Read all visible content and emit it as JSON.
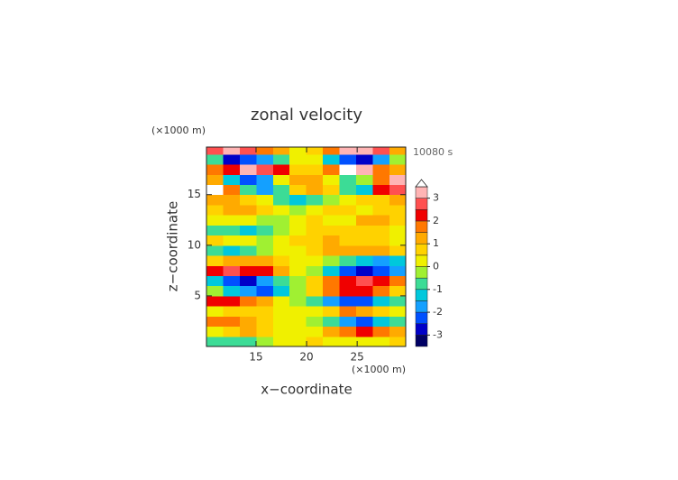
{
  "chart_data": {
    "type": "contourf",
    "title": "zonal velocity",
    "time_label": "10080 s",
    "x_label": "x−coordinate",
    "y_label": "z−coordinate",
    "x_unit": "(×1000 m)",
    "y_unit": "(×1000 m)",
    "xlim": [
      10.1,
      29.8
    ],
    "ylim": [
      0,
      19.7
    ],
    "xticks": [
      15,
      20,
      25
    ],
    "yticks": [
      5,
      10,
      15
    ],
    "x": [
      10.9,
      12.6,
      14.2,
      15.9,
      17.5,
      19.1,
      20.8,
      22.4,
      24.1,
      25.7,
      27.4,
      29.0
    ],
    "y": [
      0.5,
      1.5,
      2.5,
      3.5,
      4.5,
      5.5,
      6.5,
      7.5,
      8.5,
      9.5,
      10.5,
      11.5,
      12.5,
      13.5,
      14.5,
      15.5,
      16.5,
      17.5,
      18.5,
      19.5
    ],
    "z": [
      [
        -0.8,
        -1,
        -0.6,
        -0.2,
        0.2,
        0.3,
        0.5,
        0.4,
        0.3,
        0.2,
        0.4,
        0.5
      ],
      [
        0.3,
        0.5,
        1,
        0.8,
        0.4,
        0.2,
        0.3,
        1,
        1.8,
        2.2,
        1.5,
        1
      ],
      [
        1.5,
        1.8,
        1.2,
        0.8,
        0.3,
        0,
        -0.2,
        -1,
        -1.8,
        -2.2,
        -1.5,
        -0.8
      ],
      [
        0.2,
        0.6,
        0.9,
        0.5,
        0.2,
        0.1,
        0.2,
        0.8,
        1.5,
        1.2,
        0.7,
        0.4
      ],
      [
        2,
        2.4,
        1.8,
        1.2,
        0.3,
        -0.5,
        -1,
        -1.8,
        -2.5,
        -2.2,
        -1.5,
        -0.8
      ],
      [
        -0.5,
        -1.2,
        -2,
        -2.4,
        -1.5,
        -0.4,
        0.8,
        1.8,
        2.2,
        2.4,
        1.5,
        0.8
      ],
      [
        -1.5,
        -2.2,
        -2.6,
        -2,
        -1,
        -0.2,
        0.5,
        1.5,
        2.4,
        2.6,
        2.2,
        1.5
      ],
      [
        2.2,
        2.6,
        2.4,
        2,
        1.2,
        0.3,
        -0.5,
        -1.5,
        -2.4,
        -2.6,
        -2.2,
        -2
      ],
      [
        0.8,
        1.2,
        1.4,
        1,
        0.5,
        0.2,
        0.1,
        -0.3,
        -0.8,
        -1.2,
        -1.8,
        -1.5
      ],
      [
        -0.6,
        -1.2,
        -1,
        -0.5,
        0.2,
        0.4,
        0.5,
        1,
        1.2,
        1.3,
        1,
        0.6
      ],
      [
        0.6,
        0.4,
        0.1,
        -0.1,
        0.3,
        0.6,
        0.8,
        1,
        0.9,
        0.7,
        0.5,
        0.4
      ],
      [
        -0.6,
        -0.9,
        -1.1,
        -0.8,
        -0.3,
        0.3,
        0.5,
        0.6,
        0.8,
        0.9,
        0.6,
        0.4
      ],
      [
        0.3,
        0.2,
        0.1,
        -0.2,
        -0.4,
        0.4,
        0.6,
        0.4,
        0.2,
        1,
        1.2,
        0.6
      ],
      [
        0.8,
        1,
        1.2,
        0.6,
        0.1,
        -0.4,
        0.4,
        0.8,
        0.6,
        0.4,
        0.5,
        0.8
      ],
      [
        1.3,
        1,
        0.8,
        0.3,
        -0.6,
        -1.2,
        -1,
        -0.3,
        0.3,
        0.5,
        0.9,
        1.2
      ],
      [
        3.7,
        1.5,
        -1,
        -1.6,
        -0.6,
        0.8,
        1.2,
        0.6,
        -0.8,
        -1.4,
        2,
        2.6
      ],
      [
        1.2,
        -1.5,
        -2.4,
        -1.6,
        0.2,
        1.2,
        1,
        0.4,
        -0.6,
        -0.2,
        1.8,
        3.2
      ],
      [
        1.5,
        2.4,
        3,
        2.8,
        2,
        0.8,
        0.5,
        1.6,
        3.7,
        3,
        1.8,
        1
      ],
      [
        -1,
        -2.6,
        -2.4,
        -1.6,
        -0.6,
        0.4,
        0.3,
        -1.2,
        -2.4,
        -2.6,
        -1.8,
        -0.5
      ],
      [
        2.6,
        3.2,
        2.6,
        1.8,
        1,
        0.4,
        0.5,
        1.5,
        3.1,
        3.2,
        2.5,
        1.2
      ]
    ],
    "colorbar": {
      "levels": [
        -3.5,
        -3,
        -2.5,
        -2,
        -1.5,
        -1,
        -0.5,
        0,
        0.5,
        1,
        1.5,
        2,
        2.5,
        3,
        3.5
      ],
      "colors": [
        "#000064",
        "#0000c8",
        "#0050ff",
        "#14a0ff",
        "#00c8dc",
        "#3cdc96",
        "#a0f032",
        "#f0f000",
        "#ffd200",
        "#ffaa00",
        "#ff7800",
        "#f00000",
        "#ff5050",
        "#ffb4b4"
      ],
      "extend_color": "#ffffff",
      "ticks": [
        -3,
        -2,
        -1,
        0,
        1,
        2,
        3
      ]
    }
  }
}
